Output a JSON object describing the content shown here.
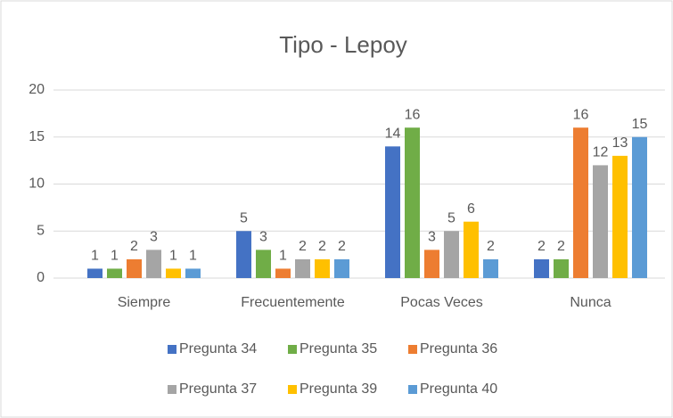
{
  "chart_data": {
    "type": "bar",
    "title": "Tipo - Lepoy",
    "categories": [
      "Siempre",
      "Frecuentemente",
      "Pocas Veces",
      "Nunca"
    ],
    "series": [
      {
        "name": "Pregunta 34",
        "color": "#4472c4",
        "values": [
          1,
          5,
          14,
          2
        ]
      },
      {
        "name": "Pregunta 35",
        "color": "#70ad47",
        "values": [
          1,
          3,
          16,
          2
        ]
      },
      {
        "name": "Pregunta 36",
        "color": "#ed7d31",
        "values": [
          2,
          1,
          3,
          16
        ]
      },
      {
        "name": "Pregunta 37",
        "color": "#a5a5a5",
        "values": [
          3,
          2,
          5,
          12
        ]
      },
      {
        "name": "Pregunta 39",
        "color": "#ffc000",
        "values": [
          1,
          2,
          6,
          13
        ]
      },
      {
        "name": "Pregunta 40",
        "color": "#5b9bd5",
        "values": [
          1,
          2,
          2,
          15
        ]
      }
    ],
    "ylim": [
      0,
      20
    ],
    "yticks": [
      0,
      5,
      10,
      15,
      20
    ],
    "grid": true,
    "legend": "bottom"
  }
}
